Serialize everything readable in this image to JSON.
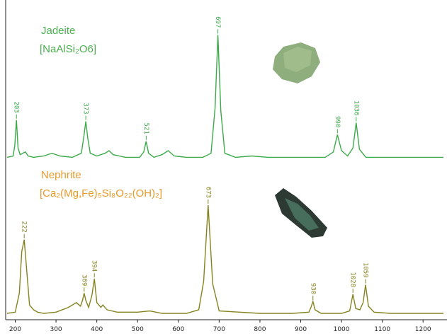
{
  "chart_data": [
    {
      "type": "line",
      "title": "Jadeite",
      "subtitle": "[NaAlSi₂O6]",
      "title_color": "#4caf50",
      "x": [
        180,
        195,
        199,
        203,
        207,
        212,
        218,
        225,
        232,
        245,
        270,
        290,
        310,
        340,
        362,
        368,
        373,
        378,
        384,
        400,
        420,
        430,
        440,
        470,
        505,
        515,
        521,
        527,
        540,
        560,
        575,
        590,
        620,
        660,
        680,
        690,
        697,
        704,
        714,
        740,
        780,
        820,
        900,
        960,
        980,
        990,
        1000,
        1015,
        1028,
        1036,
        1044,
        1060,
        1100,
        1200,
        1250
      ],
      "series": [
        {
          "color": "#3daa4a",
          "values": [
            3,
            4,
            12,
            31,
            10,
            5,
            6,
            7,
            4,
            3,
            4,
            6,
            4,
            3,
            6,
            18,
            30,
            17,
            6,
            4,
            6,
            8,
            5,
            3,
            3,
            7,
            15,
            6,
            3,
            5,
            8,
            4,
            3,
            3,
            6,
            40,
            95,
            38,
            6,
            3,
            4,
            3,
            3,
            3,
            7,
            20,
            8,
            4,
            10,
            29,
            9,
            3,
            3,
            3,
            3
          ]
        }
      ],
      "peaks": [
        203,
        373,
        521,
        697,
        990,
        1036
      ],
      "xlim": [
        180,
        1250
      ],
      "ylim": [
        0,
        100
      ]
    },
    {
      "type": "line",
      "title": "Nephrite",
      "subtitle": "[Ca₂(Mg,Fe)₅Si₈O₂₂(OH)₂]",
      "title_color": "#e89a2c",
      "x": [
        180,
        200,
        210,
        216,
        222,
        228,
        235,
        245,
        255,
        270,
        300,
        330,
        350,
        360,
        365,
        369,
        373,
        380,
        388,
        394,
        400,
        410,
        415,
        425,
        450,
        500,
        530,
        560,
        620,
        650,
        662,
        673,
        684,
        700,
        750,
        800,
        880,
        920,
        925,
        930,
        935,
        950,
        1000,
        1020,
        1028,
        1035,
        1045,
        1053,
        1059,
        1066,
        1080,
        1120,
        1200,
        1250
      ],
      "series": [
        {
          "color": "#858320",
          "values": [
            3,
            4,
            20,
            55,
            65,
            40,
            10,
            6,
            4,
            3,
            4,
            8,
            12,
            9,
            14,
            20,
            14,
            8,
            18,
            32,
            12,
            8,
            10,
            6,
            4,
            4,
            5,
            3,
            3,
            6,
            30,
            94,
            28,
            5,
            4,
            3,
            3,
            4,
            8,
            13,
            6,
            3,
            3,
            5,
            19,
            7,
            6,
            12,
            27,
            9,
            4,
            3,
            3,
            3
          ]
        }
      ],
      "peaks": [
        222,
        369,
        394,
        673,
        930,
        1028,
        1059
      ],
      "xlim": [
        180,
        1250
      ],
      "ylim": [
        0,
        100
      ],
      "xticks": [
        200,
        300,
        400,
        500,
        600,
        700,
        800,
        900,
        1000,
        1100,
        1200
      ]
    }
  ]
}
